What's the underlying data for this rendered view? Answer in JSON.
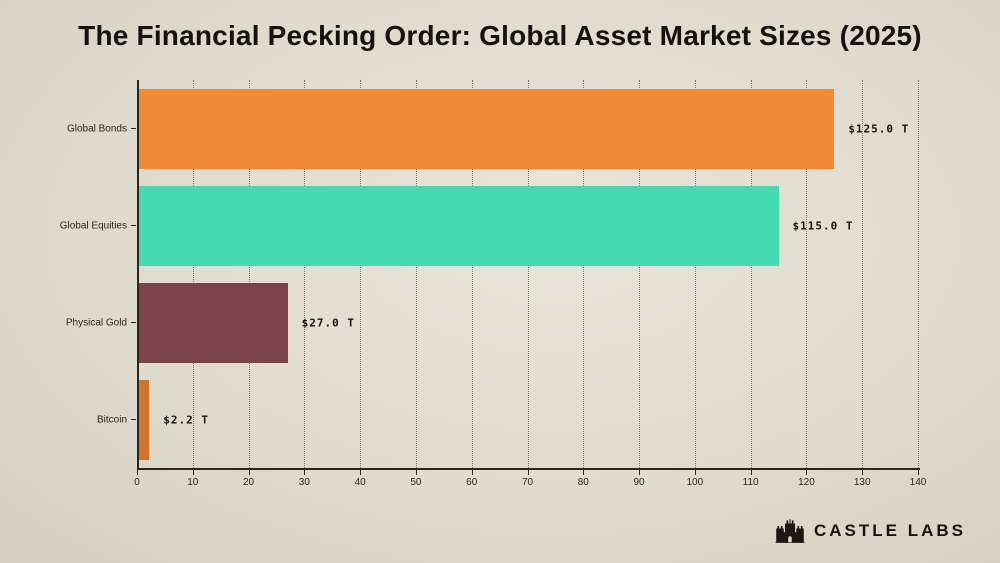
{
  "title": "The Financial Pecking Order: Global Asset Market Sizes (2025)",
  "brand": {
    "name": "CASTLE LABS",
    "icon": "castle-icon"
  },
  "chart_data": {
    "type": "bar",
    "orientation": "horizontal",
    "title": "The Financial Pecking Order: Global Asset Market Sizes (2025)",
    "categories": [
      "Global Bonds",
      "Global Equities",
      "Physical Gold",
      "Bitcoin"
    ],
    "values": [
      125.0,
      115.0,
      27.0,
      2.2
    ],
    "value_labels": [
      "$125.0 T",
      "$115.0 T",
      "$27.0 T",
      "$2.2 T"
    ],
    "bar_colors": [
      "#EF8B35",
      "#44DBB1",
      "#7D434C",
      "#D0742C"
    ],
    "xlabel": "",
    "ylabel": "",
    "xlim": [
      0,
      140
    ],
    "x_ticks": [
      0,
      10,
      20,
      30,
      40,
      50,
      60,
      70,
      80,
      90,
      100,
      110,
      120,
      130,
      140
    ],
    "grid": "dotted-vertical",
    "legend": "none"
  }
}
